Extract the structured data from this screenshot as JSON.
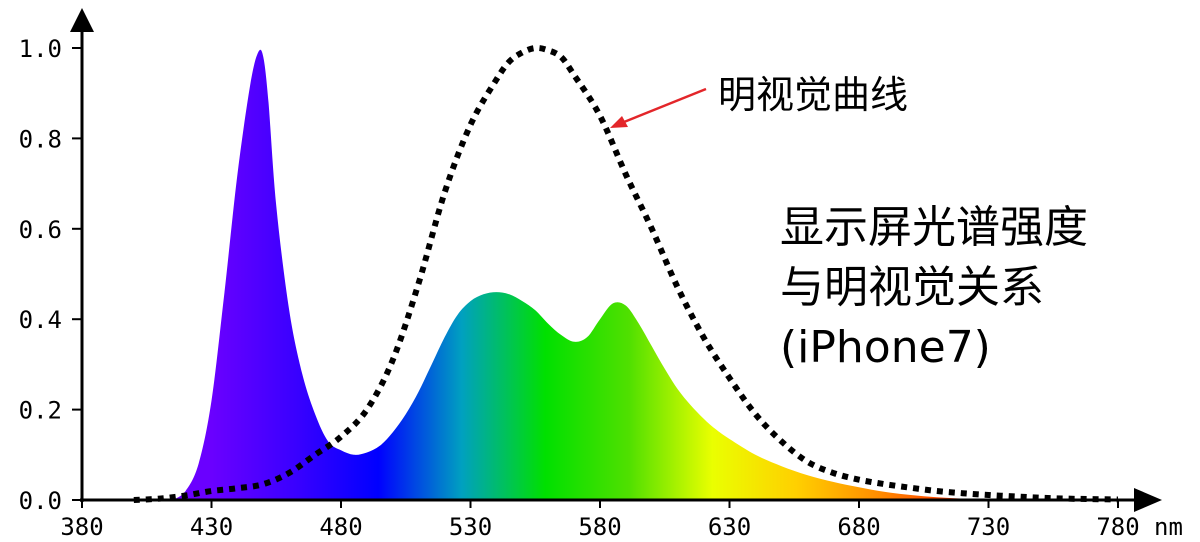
{
  "chart_data": {
    "type": "area",
    "title": "",
    "xlabel": "",
    "ylabel": "",
    "x_unit": "nm",
    "xlim": [
      380,
      780
    ],
    "ylim": [
      0,
      1.0
    ],
    "x_ticks": [
      "380",
      "430",
      "480",
      "530",
      "580",
      "630",
      "680",
      "730",
      "780"
    ],
    "y_ticks": [
      "0.0",
      "0.2",
      "0.4",
      "0.6",
      "0.8",
      "1.0"
    ],
    "grid": false,
    "series": [
      {
        "style": "filled-spectrum",
        "x": [
          415,
          420,
          425,
          430,
          435,
          440,
          445,
          448,
          450,
          452,
          455,
          460,
          465,
          470,
          475,
          480,
          485,
          490,
          495,
          500,
          505,
          510,
          515,
          520,
          525,
          530,
          535,
          540,
          545,
          550,
          555,
          560,
          565,
          570,
          575,
          580,
          585,
          590,
          595,
          600,
          605,
          610,
          615,
          620,
          625,
          630,
          640,
          650,
          660,
          670,
          680,
          690,
          700,
          710,
          720,
          730
        ],
        "values": [
          0.0,
          0.02,
          0.08,
          0.22,
          0.46,
          0.72,
          0.92,
          0.99,
          0.98,
          0.88,
          0.65,
          0.42,
          0.28,
          0.19,
          0.13,
          0.11,
          0.1,
          0.105,
          0.12,
          0.15,
          0.19,
          0.24,
          0.3,
          0.36,
          0.41,
          0.44,
          0.455,
          0.46,
          0.455,
          0.44,
          0.42,
          0.39,
          0.365,
          0.35,
          0.36,
          0.4,
          0.435,
          0.43,
          0.39,
          0.34,
          0.29,
          0.245,
          0.21,
          0.18,
          0.155,
          0.135,
          0.1,
          0.075,
          0.055,
          0.04,
          0.028,
          0.018,
          0.011,
          0.006,
          0.003,
          0.001
        ]
      },
      {
        "style": "dotted-line",
        "x": [
          400,
          410,
          420,
          430,
          440,
          450,
          460,
          470,
          480,
          490,
          500,
          510,
          520,
          530,
          540,
          545,
          550,
          555,
          560,
          565,
          570,
          580,
          590,
          600,
          610,
          620,
          630,
          640,
          650,
          660,
          670,
          680,
          690,
          700,
          710,
          720,
          730,
          740,
          750,
          760,
          770,
          780
        ],
        "values": [
          0.0,
          0.003,
          0.01,
          0.02,
          0.026,
          0.035,
          0.06,
          0.1,
          0.14,
          0.2,
          0.31,
          0.48,
          0.68,
          0.83,
          0.93,
          0.97,
          0.99,
          1.0,
          0.995,
          0.98,
          0.94,
          0.85,
          0.72,
          0.6,
          0.47,
          0.36,
          0.27,
          0.19,
          0.13,
          0.085,
          0.06,
          0.045,
          0.035,
          0.027,
          0.02,
          0.015,
          0.011,
          0.008,
          0.005,
          0.003,
          0.002,
          0.001
        ]
      }
    ],
    "annotations": {
      "curve_label": "明视觉曲线",
      "description_lines": [
        "显示屏光谱强度",
        "与明视觉关系",
        "(iPhone7)"
      ]
    },
    "colors": {
      "axis": "#000000",
      "arrow": "#e3262a",
      "dotted_line": "#000000",
      "spectrum_stops": [
        "#6a00ff",
        "#3a00ff",
        "#0000ff",
        "#00a0c0",
        "#00e000",
        "#50e000",
        "#eaff00",
        "#ffd000",
        "#ff8c00",
        "#ff3000"
      ]
    }
  }
}
